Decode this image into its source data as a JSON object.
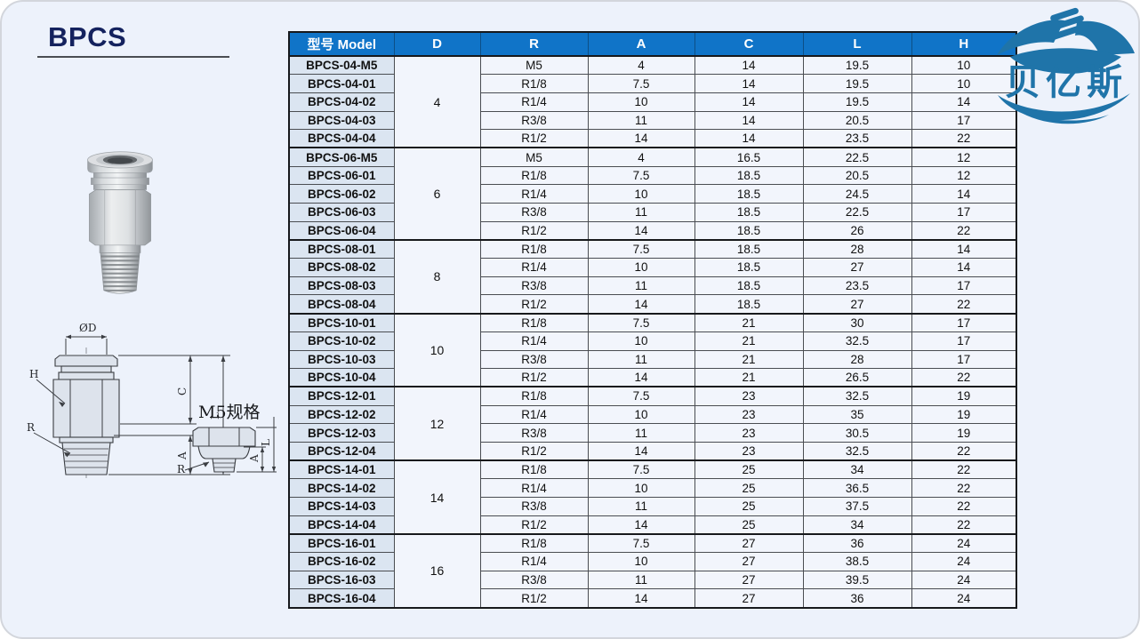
{
  "page": {
    "title": "BPCS"
  },
  "logo": {
    "text": "贝亿斯",
    "color": "#1f74a9"
  },
  "drawing": {
    "m5_label": "M5规格",
    "dims": {
      "d": "ØD",
      "h": "H",
      "r": "R",
      "c": "C",
      "l": "L",
      "a": "A"
    },
    "m5_dims": {
      "l": "L",
      "a": "A",
      "r": "R"
    }
  },
  "table": {
    "headers": [
      "型号 Model",
      "D",
      "R",
      "A",
      "C",
      "L",
      "H"
    ],
    "header_bg": "#1074c8",
    "model_col_bg": "#dbe5f1",
    "cell_bg": "#f2f5fc",
    "groups": [
      {
        "d": "4",
        "rows": [
          [
            "BPCS-04-M5",
            "M5",
            "4",
            "14",
            "19.5",
            "10"
          ],
          [
            "BPCS-04-01",
            "R1/8",
            "7.5",
            "14",
            "19.5",
            "10"
          ],
          [
            "BPCS-04-02",
            "R1/4",
            "10",
            "14",
            "19.5",
            "14"
          ],
          [
            "BPCS-04-03",
            "R3/8",
            "11",
            "14",
            "20.5",
            "17"
          ],
          [
            "BPCS-04-04",
            "R1/2",
            "14",
            "14",
            "23.5",
            "22"
          ]
        ]
      },
      {
        "d": "6",
        "rows": [
          [
            "BPCS-06-M5",
            "M5",
            "4",
            "16.5",
            "22.5",
            "12"
          ],
          [
            "BPCS-06-01",
            "R1/8",
            "7.5",
            "18.5",
            "20.5",
            "12"
          ],
          [
            "BPCS-06-02",
            "R1/4",
            "10",
            "18.5",
            "24.5",
            "14"
          ],
          [
            "BPCS-06-03",
            "R3/8",
            "11",
            "18.5",
            "22.5",
            "17"
          ],
          [
            "BPCS-06-04",
            "R1/2",
            "14",
            "18.5",
            "26",
            "22"
          ]
        ]
      },
      {
        "d": "8",
        "rows": [
          [
            "BPCS-08-01",
            "R1/8",
            "7.5",
            "18.5",
            "28",
            "14"
          ],
          [
            "BPCS-08-02",
            "R1/4",
            "10",
            "18.5",
            "27",
            "14"
          ],
          [
            "BPCS-08-03",
            "R3/8",
            "11",
            "18.5",
            "23.5",
            "17"
          ],
          [
            "BPCS-08-04",
            "R1/2",
            "14",
            "18.5",
            "27",
            "22"
          ]
        ]
      },
      {
        "d": "10",
        "rows": [
          [
            "BPCS-10-01",
            "R1/8",
            "7.5",
            "21",
            "30",
            "17"
          ],
          [
            "BPCS-10-02",
            "R1/4",
            "10",
            "21",
            "32.5",
            "17"
          ],
          [
            "BPCS-10-03",
            "R3/8",
            "11",
            "21",
            "28",
            "17"
          ],
          [
            "BPCS-10-04",
            "R1/2",
            "14",
            "21",
            "26.5",
            "22"
          ]
        ]
      },
      {
        "d": "12",
        "rows": [
          [
            "BPCS-12-01",
            "R1/8",
            "7.5",
            "23",
            "32.5",
            "19"
          ],
          [
            "BPCS-12-02",
            "R1/4",
            "10",
            "23",
            "35",
            "19"
          ],
          [
            "BPCS-12-03",
            "R3/8",
            "11",
            "23",
            "30.5",
            "19"
          ],
          [
            "BPCS-12-04",
            "R1/2",
            "14",
            "23",
            "32.5",
            "22"
          ]
        ]
      },
      {
        "d": "14",
        "rows": [
          [
            "BPCS-14-01",
            "R1/8",
            "7.5",
            "25",
            "34",
            "22"
          ],
          [
            "BPCS-14-02",
            "R1/4",
            "10",
            "25",
            "36.5",
            "22"
          ],
          [
            "BPCS-14-03",
            "R3/8",
            "11",
            "25",
            "37.5",
            "22"
          ],
          [
            "BPCS-14-04",
            "R1/2",
            "14",
            "25",
            "34",
            "22"
          ]
        ]
      },
      {
        "d": "16",
        "rows": [
          [
            "BPCS-16-01",
            "R1/8",
            "7.5",
            "27",
            "36",
            "24"
          ],
          [
            "BPCS-16-02",
            "R1/4",
            "10",
            "27",
            "38.5",
            "24"
          ],
          [
            "BPCS-16-03",
            "R3/8",
            "11",
            "27",
            "39.5",
            "24"
          ],
          [
            "BPCS-16-04",
            "R1/2",
            "14",
            "27",
            "36",
            "24"
          ]
        ]
      }
    ]
  }
}
